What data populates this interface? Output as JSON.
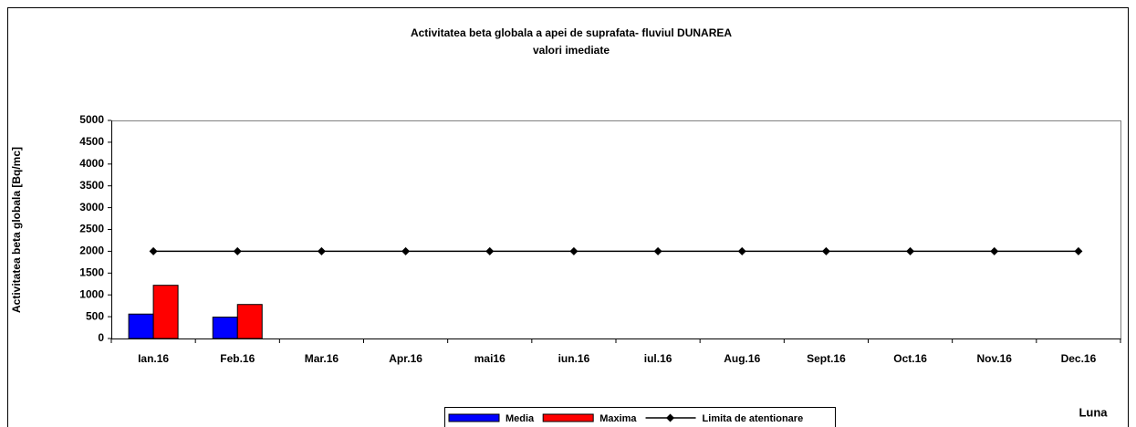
{
  "chart_data": {
    "type": "bar",
    "title": "Activitatea beta globala a apei de suprafata- fluviul DUNAREA",
    "subtitle": "valori imediate",
    "x_label": "Luna",
    "y_label": "Activitatea beta globala [Bq/mc]",
    "categories": [
      "Ian.16",
      "Feb.16",
      "Mar.16",
      "Apr.16",
      "mai16",
      "iun.16",
      "iul.16",
      "Aug.16",
      "Sept.16",
      "Oct.16",
      "Nov.16",
      "Dec.16"
    ],
    "series": [
      {
        "name": "Media",
        "color": "#0000ff",
        "style": "bar",
        "values": [
          560,
          490,
          null,
          null,
          null,
          null,
          null,
          null,
          null,
          null,
          null,
          null
        ]
      },
      {
        "name": "Maxima",
        "color": "#ff0000",
        "style": "bar",
        "values": [
          1220,
          780,
          null,
          null,
          null,
          null,
          null,
          null,
          null,
          null,
          null,
          null
        ]
      },
      {
        "name": "Limita de atentionare",
        "color": "#000000",
        "style": "line",
        "marker": "diamond",
        "values": [
          2000,
          2000,
          2000,
          2000,
          2000,
          2000,
          2000,
          2000,
          2000,
          2000,
          2000,
          2000
        ]
      }
    ],
    "ylim": [
      0,
      5000
    ],
    "yticks": [
      0,
      500,
      1000,
      1500,
      2000,
      2500,
      3000,
      3500,
      4000,
      4500,
      5000
    ],
    "grid": false,
    "legend": "bottom"
  }
}
